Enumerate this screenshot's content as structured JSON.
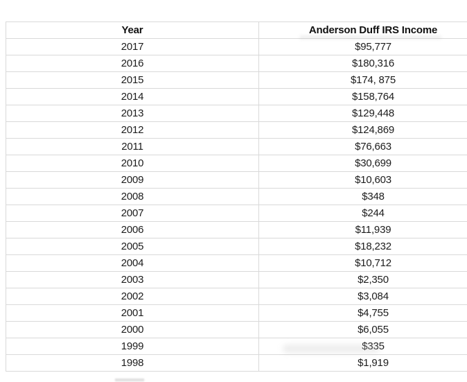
{
  "colors": {
    "background": "#ffffff",
    "grid_border": "#d9d9d9",
    "text": "#1c1c1c"
  },
  "chart_data": {
    "type": "table",
    "columns": [
      "Year",
      "Anderson Duff IRS Income"
    ],
    "rows": [
      {
        "year": "2017",
        "income": "$95,777",
        "income_numeric": 95777
      },
      {
        "year": "2016",
        "income": "$180,316",
        "income_numeric": 180316
      },
      {
        "year": "2015",
        "income": "$174, 875",
        "income_numeric": 174875
      },
      {
        "year": "2014",
        "income": "$158,764",
        "income_numeric": 158764
      },
      {
        "year": "2013",
        "income": "$129,448",
        "income_numeric": 129448
      },
      {
        "year": "2012",
        "income": "$124,869",
        "income_numeric": 124869
      },
      {
        "year": "2011",
        "income": "$76,663",
        "income_numeric": 76663
      },
      {
        "year": "2010",
        "income": "$30,699",
        "income_numeric": 30699
      },
      {
        "year": "2009",
        "income": "$10,603",
        "income_numeric": 10603
      },
      {
        "year": "2008",
        "income": "$348",
        "income_numeric": 348
      },
      {
        "year": "2007",
        "income": "$244",
        "income_numeric": 244
      },
      {
        "year": "2006",
        "income": "$11,939",
        "income_numeric": 11939
      },
      {
        "year": "2005",
        "income": "$18,232",
        "income_numeric": 18232
      },
      {
        "year": "2004",
        "income": "$10,712",
        "income_numeric": 10712
      },
      {
        "year": "2003",
        "income": "$2,350",
        "income_numeric": 2350
      },
      {
        "year": "2002",
        "income": "$3,084",
        "income_numeric": 3084
      },
      {
        "year": "2001",
        "income": "$4,755",
        "income_numeric": 4755
      },
      {
        "year": "2000",
        "income": "$6,055",
        "income_numeric": 6055
      },
      {
        "year": "1999",
        "income": "$335",
        "income_numeric": 335
      },
      {
        "year": "1998",
        "income": "$1,919",
        "income_numeric": 1919
      }
    ]
  }
}
